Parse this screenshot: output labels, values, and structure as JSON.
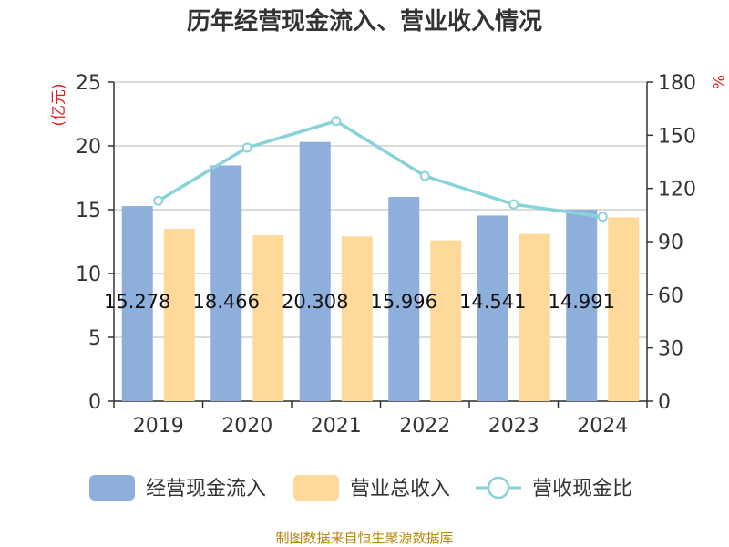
{
  "chart_data": {
    "type": "bar",
    "title": "历年经营现金流入、营业收入情况",
    "categories": [
      "2019",
      "2020",
      "2021",
      "2022",
      "2023",
      "2024"
    ],
    "left_axis": {
      "unit": "(亿元)",
      "ylim": [
        0,
        25
      ],
      "ticks": [
        "0",
        "5",
        "10",
        "15",
        "20",
        "25"
      ]
    },
    "right_axis": {
      "unit": "%",
      "ylim": [
        0,
        180
      ],
      "ticks": [
        "0",
        "30",
        "60",
        "90",
        "120",
        "150",
        "180"
      ]
    },
    "series": [
      {
        "name": "经营现金流入",
        "type": "bar",
        "axis": "left",
        "color": "#8eaedb",
        "values": [
          15.278,
          18.466,
          20.308,
          15.996,
          14.541,
          14.991
        ],
        "labels": [
          "15.278",
          "18.466",
          "20.308",
          "15.996",
          "14.541",
          "14.991"
        ]
      },
      {
        "name": "营业总收入",
        "type": "bar",
        "axis": "left",
        "color": "#ffd99a",
        "values": [
          13.5,
          13.0,
          12.9,
          12.6,
          13.1,
          14.4
        ]
      },
      {
        "name": "营收现金比",
        "type": "line",
        "axis": "right",
        "color": "#88d3d8",
        "values": [
          113,
          143,
          158,
          127,
          111,
          104
        ]
      }
    ],
    "grid": true,
    "legend_position": "bottom"
  },
  "source": "制图数据来自恒生聚源数据库"
}
